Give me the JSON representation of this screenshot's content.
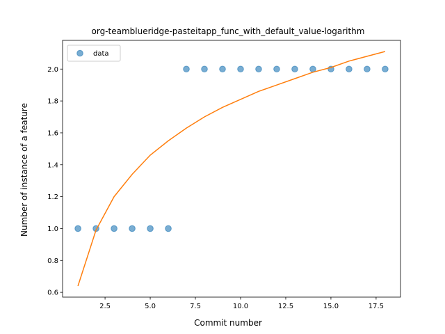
{
  "chart_data": {
    "type": "scatter",
    "title": "org-teamblueridge-pasteitapp_func_with_default_value-logarithm",
    "xlabel": "Commit number",
    "ylabel": "Number of instance of a feature",
    "xlim": [
      0.15,
      18.85
    ],
    "ylim": [
      0.57,
      2.18
    ],
    "xticks": [
      2.5,
      5.0,
      7.5,
      10.0,
      12.5,
      15.0,
      17.5
    ],
    "xtick_labels": [
      "2.5",
      "5.0",
      "7.5",
      "10.0",
      "12.5",
      "15.0",
      "17.5"
    ],
    "yticks": [
      0.6,
      0.8,
      1.0,
      1.2,
      1.4,
      1.6,
      1.8,
      2.0
    ],
    "ytick_labels": [
      "0.6",
      "0.8",
      "1.0",
      "1.2",
      "1.4",
      "1.6",
      "1.8",
      "2.0"
    ],
    "grid": false,
    "legend": {
      "placement": "top-left",
      "entries": [
        "data"
      ]
    },
    "series": [
      {
        "name": "data",
        "kind": "scatter",
        "color": "#1f77b4",
        "x": [
          1,
          2,
          3,
          4,
          5,
          6,
          7,
          8,
          9,
          10,
          11,
          12,
          13,
          14,
          15,
          16,
          17,
          18
        ],
        "y": [
          1,
          1,
          1,
          1,
          1,
          1,
          2,
          2,
          2,
          2,
          2,
          2,
          2,
          2,
          2,
          2,
          2,
          2
        ]
      },
      {
        "kind": "line",
        "color": "#ff7f0e",
        "x": [
          1,
          2,
          3,
          4,
          5,
          6,
          7,
          8,
          9,
          10,
          11,
          12,
          13,
          14,
          15,
          16,
          17,
          18
        ],
        "y": [
          0.64,
          0.99,
          1.2,
          1.34,
          1.46,
          1.55,
          1.63,
          1.7,
          1.76,
          1.81,
          1.86,
          1.9,
          1.94,
          1.98,
          2.01,
          2.05,
          2.08,
          2.11
        ]
      }
    ]
  }
}
